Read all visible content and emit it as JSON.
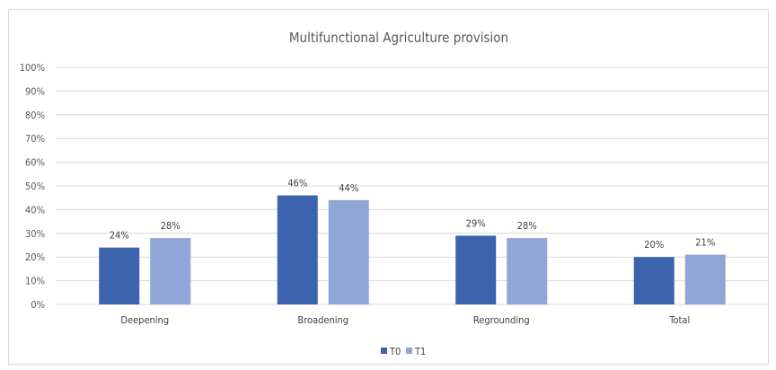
{
  "chart_data": {
    "type": "bar",
    "title": "Multifunctional Agriculture provision",
    "categories": [
      "Deepening",
      "Broadening",
      "Regrounding",
      "Total"
    ],
    "series": [
      {
        "name": "T0",
        "values": [
          24,
          46,
          29,
          20
        ],
        "labels": [
          "24%",
          "46%",
          "29%",
          "20%"
        ],
        "color": "#3c63ad"
      },
      {
        "name": "T1",
        "values": [
          28,
          44,
          28,
          21
        ],
        "labels": [
          "28%",
          "44%",
          "28%",
          "21%"
        ],
        "color": "#8fa6d6"
      }
    ],
    "ylim": [
      0,
      100
    ],
    "yticks": [
      "0%",
      "10%",
      "20%",
      "30%",
      "40%",
      "50%",
      "60%",
      "70%",
      "80%",
      "90%",
      "100%"
    ],
    "grid": true,
    "legend_position": "bottom"
  }
}
